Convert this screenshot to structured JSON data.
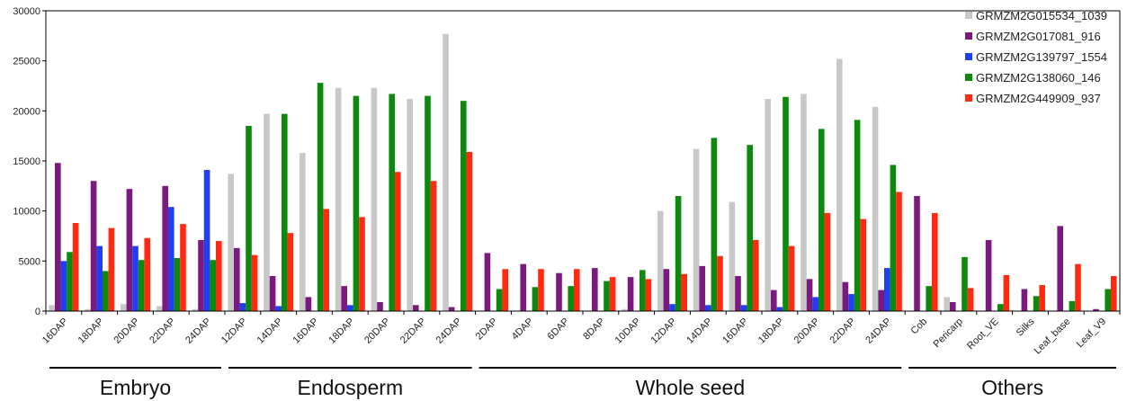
{
  "chart_data": {
    "type": "bar",
    "ylim": [
      0,
      30000
    ],
    "yticks": [
      "0",
      "5000",
      "10000",
      "15000",
      "20000",
      "25000",
      "30000"
    ],
    "categories": [
      "16DAP",
      "18DAP",
      "20DAP",
      "22DAP",
      "24DAP",
      "12DAP",
      "14DAP",
      "16DAP",
      "18DAP",
      "20DAP",
      "22DAP",
      "24DAP",
      "2DAP",
      "4DAP",
      "6DAP",
      "8DAP",
      "10DAP",
      "12DAP",
      "14DAP",
      "16DAP",
      "18DAP",
      "20DAP",
      "22DAP",
      "24DAP",
      "Cob",
      "Pericarp",
      "Root_VE",
      "Silks",
      "Leaf_base",
      "Leaf_V9"
    ],
    "groups": [
      {
        "label": "Embryo",
        "count": 5
      },
      {
        "label": "Endosperm",
        "count": 7
      },
      {
        "label": "Whole seed",
        "count": 12
      },
      {
        "label": "Others",
        "count": 6
      }
    ],
    "legend_position": "top-right",
    "series": [
      {
        "name": "GRMZM2G015534_1039",
        "color": "#c8c8c8",
        "values": [
          600,
          200,
          700,
          500,
          200,
          13700,
          19700,
          15800,
          22300,
          22300,
          21200,
          27700,
          0,
          0,
          0,
          0,
          200,
          10000,
          16200,
          10900,
          21200,
          21700,
          25200,
          20400,
          0,
          1400,
          0,
          0,
          0,
          0
        ]
      },
      {
        "name": "GRMZM2G017081_916",
        "color": "#7b1a7e",
        "values": [
          14800,
          13000,
          12200,
          12500,
          7100,
          6300,
          3500,
          1400,
          2500,
          900,
          600,
          400,
          5800,
          4700,
          3800,
          4300,
          3400,
          4200,
          4500,
          3500,
          2100,
          3200,
          2900,
          2100,
          11500,
          900,
          7100,
          2200,
          8500,
          200
        ]
      },
      {
        "name": "GRMZM2G139797_1554",
        "color": "#1f3ff0",
        "values": [
          5000,
          6500,
          6500,
          10400,
          14100,
          800,
          500,
          0,
          600,
          0,
          0,
          0,
          0,
          0,
          0,
          0,
          0,
          700,
          600,
          600,
          400,
          1400,
          1700,
          4300,
          0,
          0,
          0,
          0,
          0,
          0
        ]
      },
      {
        "name": "GRMZM2G138060_146",
        "color": "#0d8a0d",
        "values": [
          5900,
          4000,
          5100,
          5300,
          5100,
          18500,
          19700,
          22800,
          21500,
          21700,
          21500,
          21000,
          2200,
          2400,
          2500,
          3000,
          4100,
          11500,
          17300,
          16600,
          21400,
          18200,
          19100,
          14600,
          2500,
          5400,
          700,
          1500,
          1000,
          2200
        ]
      },
      {
        "name": "GRMZM2G449909_937",
        "color": "#ff2a10",
        "values": [
          8800,
          8300,
          7300,
          8700,
          7000,
          5600,
          7800,
          10200,
          9400,
          13900,
          13000,
          15900,
          4200,
          4200,
          4200,
          3400,
          3200,
          3700,
          5500,
          7100,
          6500,
          9800,
          9200,
          11900,
          9800,
          2300,
          3600,
          2600,
          4700,
          3500
        ]
      }
    ]
  }
}
